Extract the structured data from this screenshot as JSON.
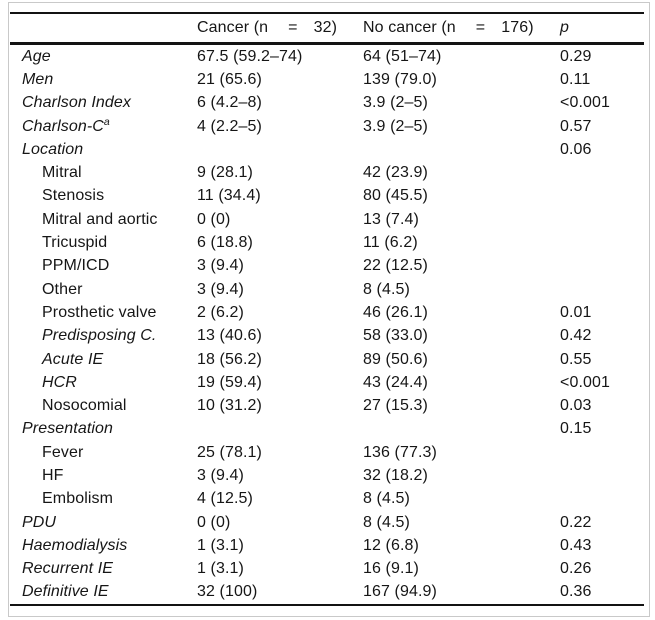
{
  "table": {
    "header": {
      "label_col": "",
      "cancer_parts": [
        "Cancer (n",
        "=",
        "32)"
      ],
      "no_cancer_parts": [
        "No cancer (n",
        "=",
        "176)"
      ],
      "p": "p"
    },
    "rows": [
      {
        "label": "Age",
        "italic": true,
        "indent": false,
        "cancer": "67.5 (59.2–74)",
        "no_cancer": "64 (51–74)",
        "p": "0.29"
      },
      {
        "label": "Men",
        "italic": true,
        "indent": false,
        "cancer": "21 (65.6)",
        "no_cancer": "139 (79.0)",
        "p": "0.11"
      },
      {
        "label": "Charlson Index",
        "italic": true,
        "indent": false,
        "cancer": "6 (4.2–8)",
        "no_cancer": "3.9 (2–5)",
        "p": "<0.001"
      },
      {
        "label": "Charlson-C",
        "sup": "a",
        "italic": true,
        "indent": false,
        "cancer": "4 (2.2–5)",
        "no_cancer": "3.9 (2–5)",
        "p": "0.57"
      },
      {
        "label": "Location",
        "italic": true,
        "indent": false,
        "cancer": "",
        "no_cancer": "",
        "p": "0.06"
      },
      {
        "label": "Mitral",
        "italic": false,
        "indent": true,
        "cancer": "9 (28.1)",
        "no_cancer": "42 (23.9)",
        "p": ""
      },
      {
        "label": "Stenosis",
        "italic": false,
        "indent": true,
        "cancer": "11 (34.4)",
        "no_cancer": "80 (45.5)",
        "p": ""
      },
      {
        "label": "Mitral and aortic",
        "italic": false,
        "indent": true,
        "cancer": "0 (0)",
        "no_cancer": "13 (7.4)",
        "p": ""
      },
      {
        "label": "Tricuspid",
        "italic": false,
        "indent": true,
        "cancer": "6 (18.8)",
        "no_cancer": "11 (6.2)",
        "p": ""
      },
      {
        "label": "PPM/ICD",
        "italic": false,
        "indent": true,
        "cancer": "3 (9.4)",
        "no_cancer": "22 (12.5)",
        "p": ""
      },
      {
        "label": "Other",
        "italic": false,
        "indent": true,
        "cancer": "3 (9.4)",
        "no_cancer": "8 (4.5)",
        "p": ""
      },
      {
        "label": "Prosthetic valve",
        "italic": false,
        "indent": true,
        "cancer": "2 (6.2)",
        "no_cancer": "46 (26.1)",
        "p": "0.01"
      },
      {
        "label": "Predisposing C.",
        "italic": true,
        "indent": true,
        "cancer": "13 (40.6)",
        "no_cancer": "58 (33.0)",
        "p": "0.42"
      },
      {
        "label": "Acute IE",
        "italic": true,
        "indent": true,
        "cancer": "18 (56.2)",
        "no_cancer": "89 (50.6)",
        "p": "0.55"
      },
      {
        "label": "HCR",
        "italic": true,
        "indent": true,
        "cancer": "19 (59.4)",
        "no_cancer": "43 (24.4)",
        "p": "<0.001"
      },
      {
        "label": "Nosocomial",
        "italic": false,
        "indent": true,
        "cancer": "10 (31.2)",
        "no_cancer": "27 (15.3)",
        "p": "0.03"
      },
      {
        "label": "Presentation",
        "italic": true,
        "indent": false,
        "cancer": "",
        "no_cancer": "",
        "p": "0.15"
      },
      {
        "label": "Fever",
        "italic": false,
        "indent": true,
        "cancer": "25 (78.1)",
        "no_cancer": "136 (77.3)",
        "p": ""
      },
      {
        "label": "HF",
        "italic": false,
        "indent": true,
        "cancer": "3 (9.4)",
        "no_cancer": "32 (18.2)",
        "p": ""
      },
      {
        "label": "Embolism",
        "italic": false,
        "indent": true,
        "cancer": "4 (12.5)",
        "no_cancer": "8 (4.5)",
        "p": ""
      },
      {
        "label": "PDU",
        "italic": true,
        "indent": false,
        "cancer": "0 (0)",
        "no_cancer": "8 (4.5)",
        "p": "0.22"
      },
      {
        "label": "Haemodialysis",
        "italic": true,
        "indent": false,
        "cancer": "1 (3.1)",
        "no_cancer": "12 (6.8)",
        "p": "0.43"
      },
      {
        "label": "Recurrent IE",
        "italic": true,
        "indent": false,
        "cancer": "1 (3.1)",
        "no_cancer": "16 (9.1)",
        "p": "0.26"
      },
      {
        "label": "Definitive IE",
        "italic": true,
        "indent": false,
        "cancer": "32 (100)",
        "no_cancer": "167 (94.9)",
        "p": "0.36"
      }
    ]
  }
}
